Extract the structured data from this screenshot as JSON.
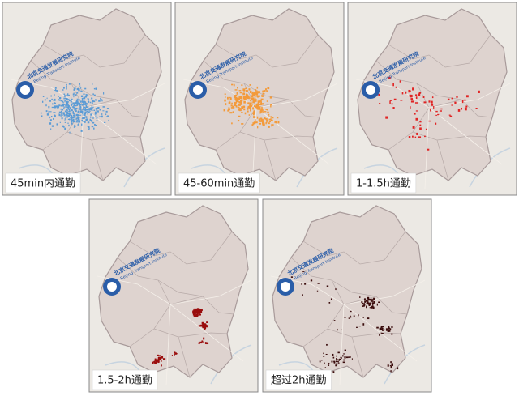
{
  "watermark": {
    "cn": "北京交通发展研究院",
    "en": "Beijing Transport Institute"
  },
  "panels": [
    {
      "label": "45min内通勤",
      "color": "#5b9bd5"
    },
    {
      "label": "45-60min通勤",
      "color": "#f39a3a"
    },
    {
      "label": "1-1.5h通勤",
      "color": "#e02424"
    },
    {
      "label": "1.5-2h通勤",
      "color": "#9a0d0d"
    },
    {
      "label": "超过2h通勤",
      "color": "#3a0c0c"
    }
  ]
}
